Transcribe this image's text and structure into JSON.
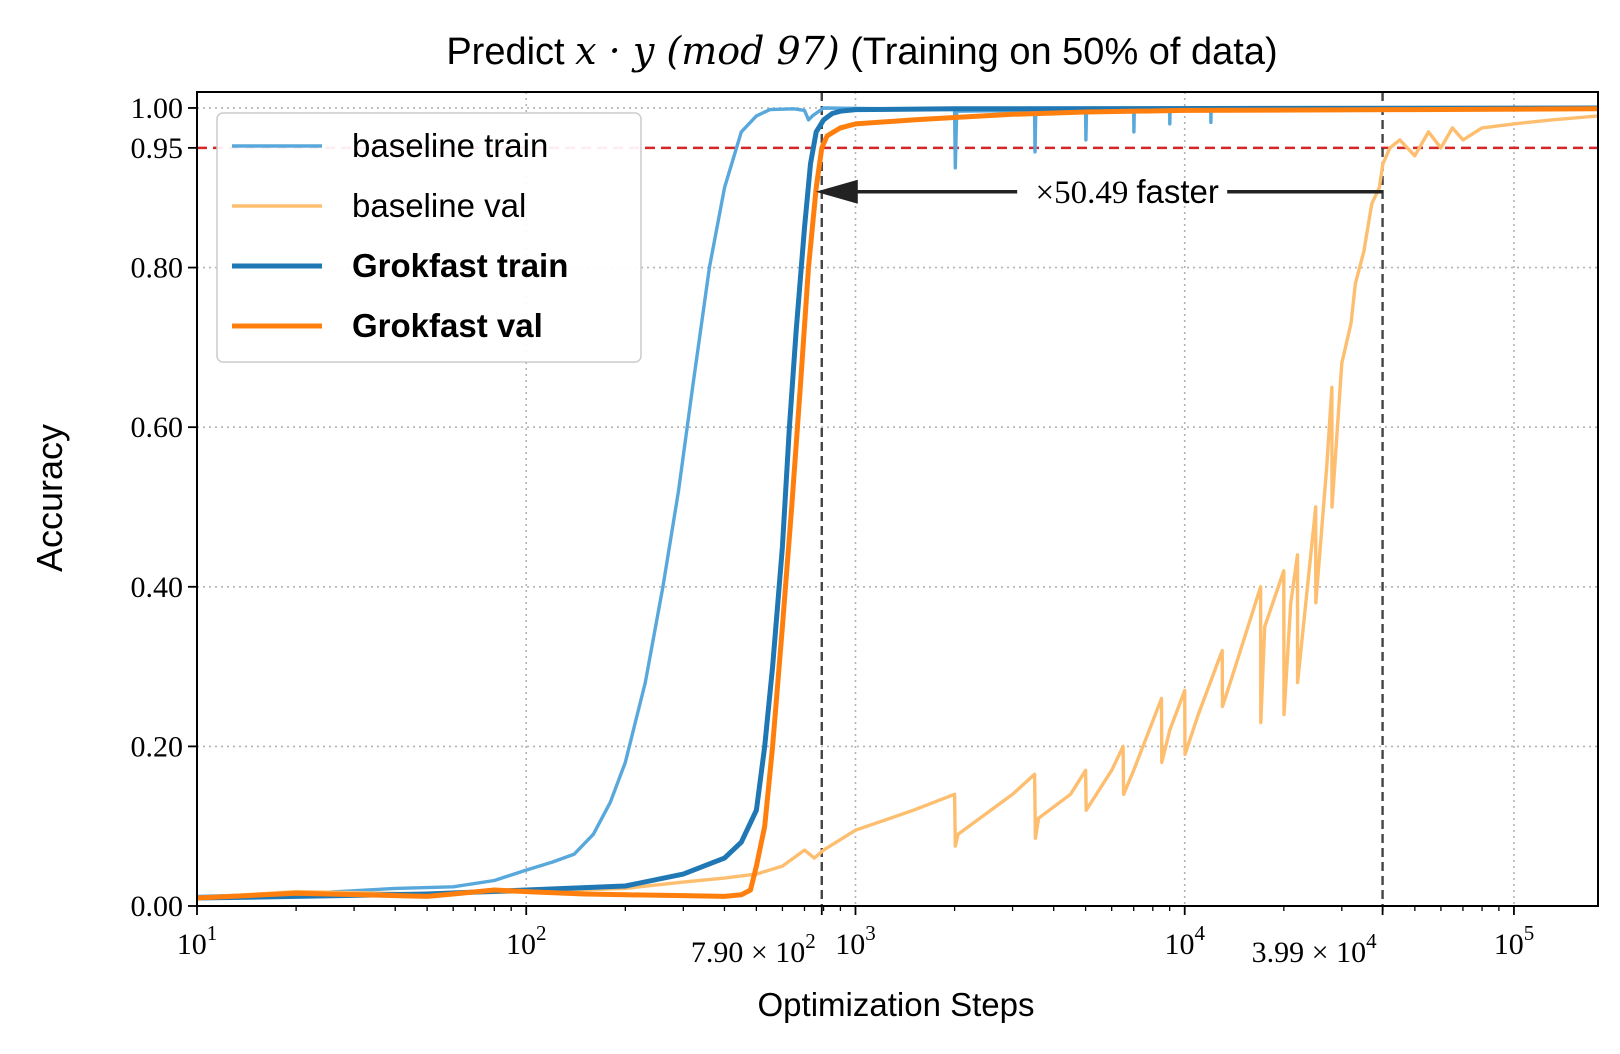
{
  "chart_data": {
    "type": "line",
    "title": "Predict x · y (mod 97) (Training on 50% of data)",
    "xlabel": "Optimization Steps",
    "ylabel": "Accuracy",
    "xscale": "log",
    "xlim": [
      10,
      180000
    ],
    "ylim": [
      0.0,
      1.02
    ],
    "grid": true,
    "legend_position": "top-left",
    "x_ticks": [
      {
        "value": 10,
        "label": "10^1"
      },
      {
        "value": 100,
        "label": "10^2"
      },
      {
        "value": 1000,
        "label": "10^3"
      },
      {
        "value": 10000,
        "label": "10^4"
      },
      {
        "value": 100000,
        "label": "10^5"
      }
    ],
    "x_special_ticks": [
      {
        "value": 790,
        "label": "7.90 × 10^2"
      },
      {
        "value": 39900,
        "label": "3.99 × 10^4"
      }
    ],
    "y_ticks": [
      "0.00",
      "0.20",
      "0.40",
      "0.60",
      "0.80",
      "0.95",
      "1.00"
    ],
    "threshold": {
      "value": 0.95,
      "color": "#d62728"
    },
    "vlines": [
      790,
      39900
    ],
    "annotation": {
      "text": "×50.49 faster",
      "from": 39900,
      "to": 790,
      "y": 0.895
    },
    "series": [
      {
        "name": "baseline train",
        "color": "#58a8dc",
        "bold": false,
        "points": [
          [
            10,
            0.012
          ],
          [
            20,
            0.015
          ],
          [
            40,
            0.022
          ],
          [
            60,
            0.024
          ],
          [
            80,
            0.032
          ],
          [
            100,
            0.045
          ],
          [
            120,
            0.055
          ],
          [
            140,
            0.065
          ],
          [
            160,
            0.09
          ],
          [
            180,
            0.13
          ],
          [
            200,
            0.18
          ],
          [
            230,
            0.28
          ],
          [
            260,
            0.4
          ],
          [
            290,
            0.52
          ],
          [
            320,
            0.65
          ],
          [
            360,
            0.8
          ],
          [
            400,
            0.9
          ],
          [
            450,
            0.97
          ],
          [
            500,
            0.99
          ],
          [
            550,
            0.998
          ],
          [
            650,
            0.999
          ],
          [
            700,
            0.997
          ],
          [
            720,
            0.985
          ],
          [
            740,
            0.99
          ],
          [
            800,
            1.0
          ],
          [
            2000,
            0.998
          ],
          [
            2010,
            0.925
          ],
          [
            2030,
            0.996
          ],
          [
            3500,
            0.997
          ],
          [
            3510,
            0.945
          ],
          [
            3530,
            0.997
          ],
          [
            5000,
            0.998
          ],
          [
            5010,
            0.96
          ],
          [
            5030,
            0.998
          ],
          [
            7000,
            0.998
          ],
          [
            7010,
            0.97
          ],
          [
            7030,
            0.998
          ],
          [
            9000,
            0.999
          ],
          [
            9010,
            0.98
          ],
          [
            9030,
            0.999
          ],
          [
            12000,
            0.999
          ],
          [
            12010,
            0.982
          ],
          [
            12030,
            0.999
          ],
          [
            180000,
            1.0
          ]
        ]
      },
      {
        "name": "baseline val",
        "color": "#fdbf6f",
        "bold": false,
        "points": [
          [
            10,
            0.01
          ],
          [
            20,
            0.018
          ],
          [
            50,
            0.015
          ],
          [
            100,
            0.018
          ],
          [
            200,
            0.022
          ],
          [
            300,
            0.03
          ],
          [
            400,
            0.035
          ],
          [
            500,
            0.04
          ],
          [
            600,
            0.05
          ],
          [
            700,
            0.07
          ],
          [
            750,
            0.06
          ],
          [
            800,
            0.07
          ],
          [
            1000,
            0.095
          ],
          [
            1500,
            0.12
          ],
          [
            2000,
            0.14
          ],
          [
            2010,
            0.075
          ],
          [
            2050,
            0.09
          ],
          [
            3000,
            0.14
          ],
          [
            3500,
            0.165
          ],
          [
            3520,
            0.085
          ],
          [
            3600,
            0.11
          ],
          [
            4500,
            0.14
          ],
          [
            5000,
            0.17
          ],
          [
            5020,
            0.12
          ],
          [
            6000,
            0.17
          ],
          [
            6500,
            0.2
          ],
          [
            6520,
            0.14
          ],
          [
            7000,
            0.17
          ],
          [
            8500,
            0.26
          ],
          [
            8520,
            0.18
          ],
          [
            9000,
            0.22
          ],
          [
            10000,
            0.27
          ],
          [
            10020,
            0.19
          ],
          [
            11000,
            0.24
          ],
          [
            13000,
            0.32
          ],
          [
            13020,
            0.25
          ],
          [
            14000,
            0.29
          ],
          [
            17000,
            0.4
          ],
          [
            17020,
            0.23
          ],
          [
            17500,
            0.35
          ],
          [
            20000,
            0.42
          ],
          [
            20020,
            0.24
          ],
          [
            21000,
            0.38
          ],
          [
            22000,
            0.44
          ],
          [
            22020,
            0.28
          ],
          [
            25000,
            0.5
          ],
          [
            25020,
            0.38
          ],
          [
            27000,
            0.55
          ],
          [
            28000,
            0.65
          ],
          [
            28020,
            0.5
          ],
          [
            30000,
            0.68
          ],
          [
            32000,
            0.73
          ],
          [
            33000,
            0.78
          ],
          [
            35000,
            0.82
          ],
          [
            37000,
            0.88
          ],
          [
            39000,
            0.9
          ],
          [
            40000,
            0.93
          ],
          [
            42000,
            0.95
          ],
          [
            45000,
            0.96
          ],
          [
            50000,
            0.94
          ],
          [
            55000,
            0.97
          ],
          [
            60000,
            0.95
          ],
          [
            65000,
            0.975
          ],
          [
            70000,
            0.96
          ],
          [
            80000,
            0.975
          ],
          [
            100000,
            0.98
          ],
          [
            130000,
            0.985
          ],
          [
            180000,
            0.99
          ]
        ]
      },
      {
        "name": "Grokfast train",
        "color": "#1f77b4",
        "bold": true,
        "points": [
          [
            10,
            0.01
          ],
          [
            20,
            0.012
          ],
          [
            50,
            0.015
          ],
          [
            100,
            0.02
          ],
          [
            200,
            0.025
          ],
          [
            300,
            0.04
          ],
          [
            400,
            0.06
          ],
          [
            450,
            0.08
          ],
          [
            500,
            0.12
          ],
          [
            530,
            0.2
          ],
          [
            560,
            0.3
          ],
          [
            600,
            0.45
          ],
          [
            630,
            0.6
          ],
          [
            660,
            0.72
          ],
          [
            700,
            0.85
          ],
          [
            730,
            0.93
          ],
          [
            760,
            0.97
          ],
          [
            800,
            0.985
          ],
          [
            850,
            0.993
          ],
          [
            900,
            0.996
          ],
          [
            1000,
            0.998
          ],
          [
            2000,
            0.999
          ],
          [
            180000,
            1.0
          ]
        ]
      },
      {
        "name": "Grokfast val",
        "color": "#ff7f0e",
        "bold": true,
        "points": [
          [
            10,
            0.01
          ],
          [
            20,
            0.016
          ],
          [
            50,
            0.012
          ],
          [
            60,
            0.015
          ],
          [
            80,
            0.02
          ],
          [
            100,
            0.018
          ],
          [
            150,
            0.015
          ],
          [
            200,
            0.014
          ],
          [
            300,
            0.013
          ],
          [
            400,
            0.012
          ],
          [
            450,
            0.014
          ],
          [
            480,
            0.02
          ],
          [
            500,
            0.05
          ],
          [
            530,
            0.1
          ],
          [
            560,
            0.2
          ],
          [
            600,
            0.35
          ],
          [
            640,
            0.5
          ],
          [
            680,
            0.65
          ],
          [
            720,
            0.8
          ],
          [
            760,
            0.9
          ],
          [
            790,
            0.95
          ],
          [
            820,
            0.965
          ],
          [
            900,
            0.975
          ],
          [
            1000,
            0.98
          ],
          [
            1500,
            0.985
          ],
          [
            2000,
            0.988
          ],
          [
            3000,
            0.992
          ],
          [
            5000,
            0.995
          ],
          [
            10000,
            0.997
          ],
          [
            50000,
            0.998
          ],
          [
            180000,
            0.999
          ]
        ]
      }
    ]
  }
}
